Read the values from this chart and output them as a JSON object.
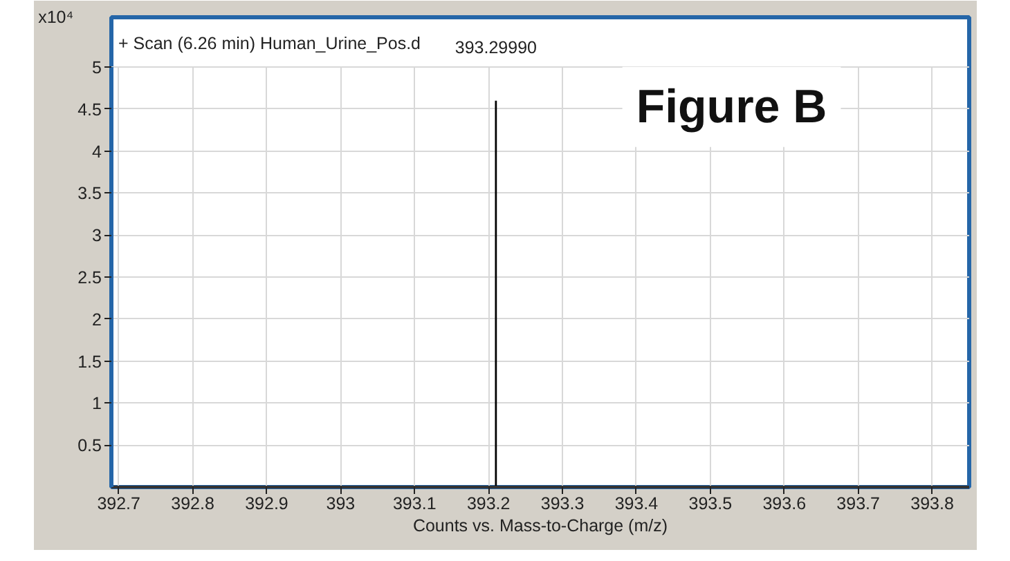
{
  "chart_data": {
    "type": "bar",
    "title": "+ Scan (6.26 min) Human_Urine_Pos.d",
    "xlabel": "Counts vs. Mass-to-Charge (m/z)",
    "ylabel": "x10⁴",
    "x": [
      393.21
    ],
    "values": [
      4.6
    ],
    "color": "#000000",
    "xlim": [
      392.69,
      393.85
    ],
    "ylim": [
      0,
      5
    ],
    "xticks": [
      392.7,
      392.8,
      392.9,
      393,
      393.1,
      393.2,
      393.3,
      393.4,
      393.5,
      393.6,
      393.7,
      393.8
    ],
    "yticks": [
      0.5,
      1,
      1.5,
      2,
      2.5,
      3,
      3.5,
      4,
      4.5,
      5
    ],
    "grid": true,
    "annotations": [
      {
        "text": "393.29990",
        "x": 393.21,
        "y": 4.6
      },
      "Figure B"
    ]
  }
}
